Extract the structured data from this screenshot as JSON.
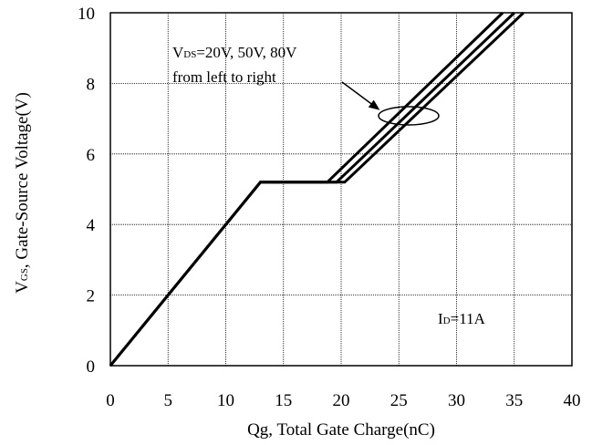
{
  "chart_data": {
    "type": "line",
    "xlabel": "Qg, Total Gate Charge(nC)",
    "ylabel": {
      "main": "V",
      "sub": "GS",
      "rest": ", Gate-Source Voltage(V)"
    },
    "xlim": [
      0,
      40
    ],
    "ylim": [
      0,
      10
    ],
    "xticks": [
      "0",
      "5",
      "10",
      "15",
      "20",
      "25",
      "30",
      "35",
      "40"
    ],
    "yticks": [
      "0",
      "2",
      "4",
      "6",
      "8",
      "10"
    ],
    "grid": true,
    "series": [
      {
        "name": "VDS=20V",
        "x": [
          0,
          13,
          18.8,
          34
        ],
        "y": [
          0,
          5.2,
          5.2,
          10
        ]
      },
      {
        "name": "VDS=50V",
        "x": [
          0,
          13,
          19.6,
          35
        ],
        "y": [
          0,
          5.2,
          5.2,
          10
        ]
      },
      {
        "name": "VDS=80V",
        "x": [
          0,
          13,
          20.3,
          35.8
        ],
        "y": [
          0,
          5.2,
          5.2,
          10
        ]
      }
    ],
    "annotations": {
      "vds_main": "V",
      "vds_sub": "DS",
      "vds_rest": "=20V, 50V, 80V",
      "order_text": "from left to right",
      "id_main": "I",
      "id_sub": "D",
      "id_rest": "=11A"
    }
  }
}
